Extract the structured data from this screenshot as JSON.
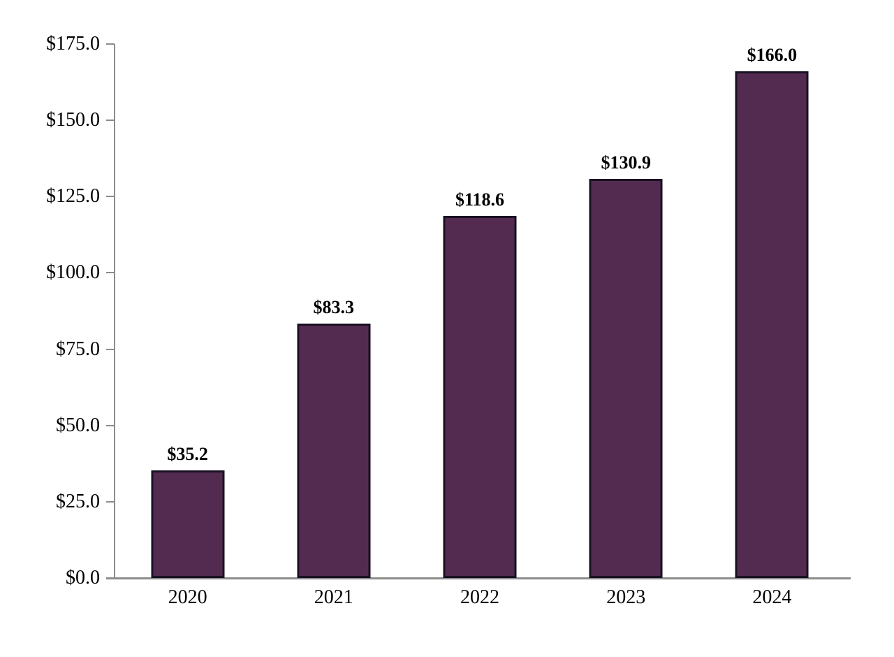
{
  "chart_data": {
    "type": "bar",
    "title": "",
    "xlabel": "",
    "ylabel": "",
    "categories": [
      "2020",
      "2021",
      "2022",
      "2023",
      "2024"
    ],
    "values": [
      35.2,
      83.3,
      118.6,
      130.9,
      166.0
    ],
    "data_labels": [
      "$35.2",
      "$83.3",
      "$118.6",
      "$130.9",
      "$166.0"
    ],
    "y_ticks": [
      {
        "value": 0,
        "label": "$0.0"
      },
      {
        "value": 25,
        "label": "$25.0"
      },
      {
        "value": 50,
        "label": "$50.0"
      },
      {
        "value": 75,
        "label": "$75.0"
      },
      {
        "value": 100,
        "label": "$100.0"
      },
      {
        "value": 125,
        "label": "$125.0"
      },
      {
        "value": 150,
        "label": "$150.0"
      },
      {
        "value": 175,
        "label": "$175.0"
      }
    ],
    "ylim": [
      0,
      175
    ],
    "grid": false,
    "legend": "none",
    "colors": {
      "bar_fill": "#542b50",
      "bar_border": "#1a1123",
      "axis": "#8c8c8c",
      "text": "#000000"
    }
  }
}
